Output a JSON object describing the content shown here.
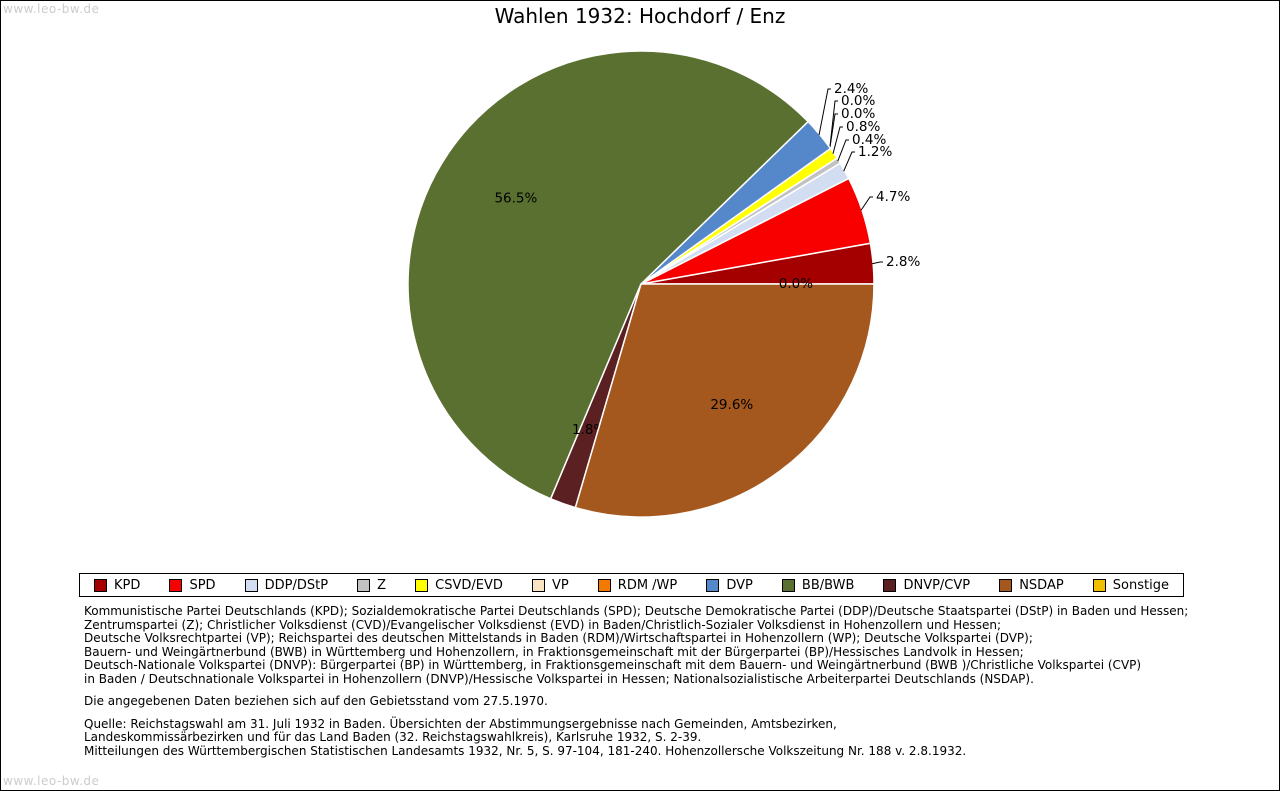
{
  "watermark": "www.leo-bw.de",
  "chart_data": {
    "type": "pie",
    "title": "Wahlen 1932: Hochdorf / Enz",
    "unit": "%",
    "direction": "counterclockwise",
    "start_angle_deg": 0,
    "slices": [
      {
        "label": "KPD",
        "value": 2.8,
        "color": "#a40000"
      },
      {
        "label": "SPD",
        "value": 4.7,
        "color": "#f80000"
      },
      {
        "label": "DDP/DStP",
        "value": 1.2,
        "color": "#d3ddf2"
      },
      {
        "label": "Z",
        "value": 0.4,
        "color": "#c2c2c2"
      },
      {
        "label": "CSVD/EVD",
        "value": 0.8,
        "color": "#ffff00"
      },
      {
        "label": "VP",
        "value": 0.0,
        "color": "#fae3c2"
      },
      {
        "label": "RDM /WP",
        "value": 0.0,
        "color": "#f57900"
      },
      {
        "label": "DVP",
        "value": 2.4,
        "color": "#5587cb"
      },
      {
        "label": "BB/BWB",
        "value": 56.5,
        "color": "#5a7030"
      },
      {
        "label": "DNVP/CVP",
        "value": 1.8,
        "color": "#5b2022"
      },
      {
        "label": "NSDAP",
        "value": 29.6,
        "color": "#a5581e"
      },
      {
        "label": "Sonstige",
        "value": 0.0,
        "color": "#f0c000"
      }
    ]
  },
  "notes": {
    "party_description_lines": [
      "Kommunistische Partei Deutschlands (KPD); Sozialdemokratische Partei Deutschlands (SPD); Deutsche Demokratische Partei (DDP)/Deutsche Staatspartei (DStP) in Baden und Hessen;",
      "Zentrumspartei (Z); Christlicher Volksdienst (CVD)/Evangelischer Volksdienst (EVD) in Baden/Christlich-Sozialer Volksdienst in Hohenzollern und Hessen;",
      "Deutsche Volksrechtpartei (VP); Reichspartei des deutschen Mittelstands in Baden (RDM)/Wirtschaftspartei in Hohenzollern (WP); Deutsche Volkspartei (DVP);",
      "Bauern- und Weingärtnerbund (BWB) in Württemberg und Hohenzollern, in Fraktionsgemeinschaft mit der Bürgerpartei (BP)/Hessisches Landvolk in Hessen;",
      "Deutsch-Nationale Volkspartei (DNVP): Bürgerpartei (BP) in Württemberg, in Fraktionsgemeinschaft mit dem Bauern- und Weingärtnerbund (BWB )/Christliche Volkspartei (CVP)",
      "in Baden / Deutschnationale Volkspartei in Hohenzollern (DNVP)/Hessische Volkspartei in Hessen; Nationalsozialistische Arbeiterpartei Deutschlands (NSDAP)."
    ],
    "territorial": "Die angegebenen Daten beziehen sich auf den Gebietsstand vom 27.5.1970.",
    "source_lines": [
      "Quelle: Reichstagswahl am 31. Juli 1932 in Baden. Übersichten der Abstimmungsergebnisse nach Gemeinden, Amtsbezirken,",
      "Landeskommissärbezirken und für das Land Baden (32. Reichstagswahlkreis), Karlsruhe 1932, S. 2-39.",
      "Mitteilungen des Württembergischen Statistischen Landesamts 1932, Nr. 5, S. 97-104, 181-240. Hohenzollersche Volkszeitung Nr. 188 v. 2.8.1932."
    ]
  }
}
